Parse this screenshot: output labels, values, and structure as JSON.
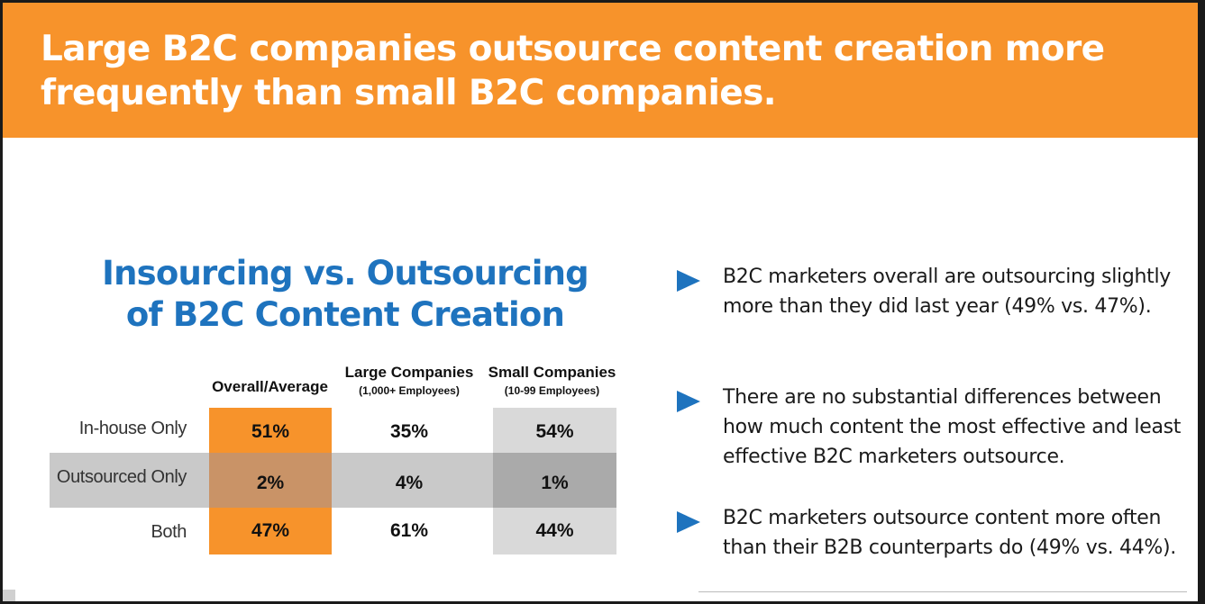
{
  "banner": {
    "title": "Large B2C companies outsource content creation more frequently than small B2C companies."
  },
  "table": {
    "title_line1": "Insourcing vs. Outsourcing",
    "title_line2": "of B2C Content Creation",
    "columns": [
      {
        "label": "Overall/Average",
        "sub": ""
      },
      {
        "label": "Large Companies",
        "sub": "(1,000+ Employees)"
      },
      {
        "label": "Small Companies",
        "sub": "(10-99 Employees)"
      }
    ],
    "rows": [
      {
        "label": "In-house Only",
        "values": [
          "51%",
          "35%",
          "54%"
        ]
      },
      {
        "label": "Outsourced Only",
        "values": [
          "2%",
          "4%",
          "1%"
        ]
      },
      {
        "label": "Both",
        "values": [
          "47%",
          "61%",
          "44%"
        ]
      }
    ]
  },
  "bullets": [
    "B2C marketers overall are outsourcing slightly more than they did last year (49% vs. 47%).",
    "There are no substantial differences between how much content the most effective and least effective B2C marketers outsource.",
    "B2C marketers outsource content more often than their B2B counterparts do (49% vs. 44%)."
  ],
  "colors": {
    "banner": "#f7932b",
    "title_blue": "#1e73be",
    "overall_column": "#f7932b",
    "overall_column_band": "#c99367",
    "small_column": "#d9d9d9",
    "small_column_band": "#aaaaaa",
    "band": "#c9c9c9",
    "bullet_arrow": "#1e73be"
  }
}
